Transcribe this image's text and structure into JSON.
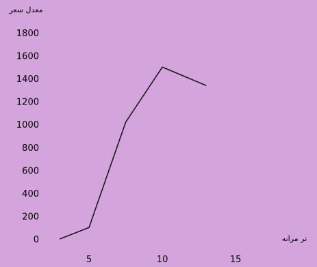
{
  "chart_data": {
    "type": "line",
    "ylabel": "معدل سعر",
    "xlabel": "تر مرانه",
    "x": [
      3,
      5,
      7.5,
      10,
      13
    ],
    "series": [
      {
        "values": [
          0,
          100,
          1020,
          1500,
          1340
        ]
      }
    ],
    "xlim": [
      2,
      17
    ],
    "ylim": [
      0,
      1800
    ],
    "xticks": [
      5,
      10,
      15
    ],
    "yticks": [
      0,
      200,
      400,
      600,
      800,
      1000,
      1200,
      1400,
      1600,
      1800
    ],
    "grid": false,
    "colors": {
      "background": "#d4a4dc",
      "line": "#1a1a1a",
      "text": "#000000"
    }
  }
}
